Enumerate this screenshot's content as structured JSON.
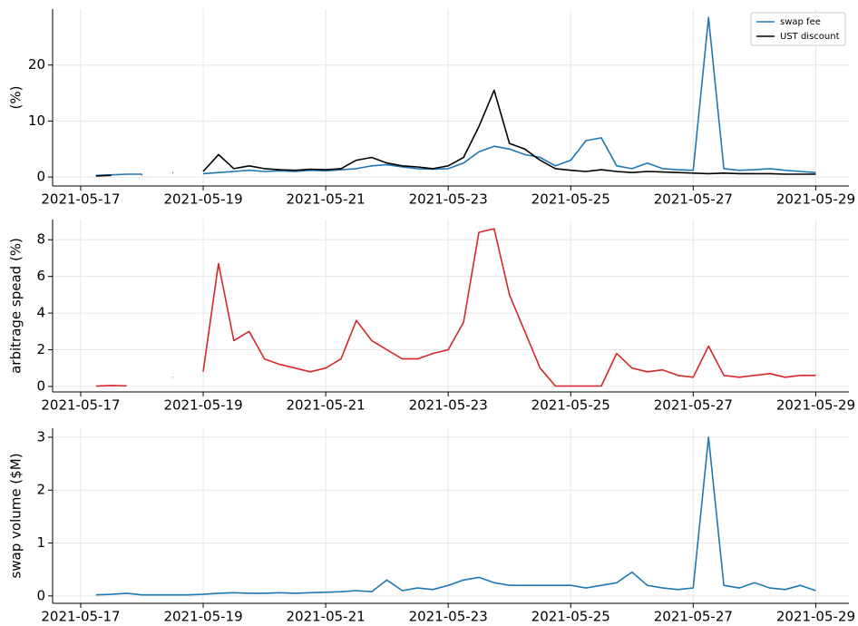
{
  "chart_data": [
    {
      "type": "line",
      "ylabel": "(%)",
      "grid": true,
      "legend": "upper right",
      "x": [
        "2021-05-17T00:00",
        "2021-05-17T06:00",
        "2021-05-17T12:00",
        "2021-05-17T18:00",
        "2021-05-18T00:00",
        "2021-05-18T06:00",
        "2021-05-18T12:00",
        "2021-05-18T18:00",
        "2021-05-19T00:00",
        "2021-05-19T06:00",
        "2021-05-19T12:00",
        "2021-05-19T18:00",
        "2021-05-20T00:00",
        "2021-05-20T06:00",
        "2021-05-20T12:00",
        "2021-05-20T18:00",
        "2021-05-21T00:00",
        "2021-05-21T06:00",
        "2021-05-21T12:00",
        "2021-05-21T18:00",
        "2021-05-22T00:00",
        "2021-05-22T06:00",
        "2021-05-22T12:00",
        "2021-05-22T18:00",
        "2021-05-23T00:00",
        "2021-05-23T06:00",
        "2021-05-23T12:00",
        "2021-05-23T18:00",
        "2021-05-24T00:00",
        "2021-05-24T06:00",
        "2021-05-24T12:00",
        "2021-05-24T18:00",
        "2021-05-25T00:00",
        "2021-05-25T06:00",
        "2021-05-25T12:00",
        "2021-05-25T18:00",
        "2021-05-26T00:00",
        "2021-05-26T06:00",
        "2021-05-26T12:00",
        "2021-05-26T18:00",
        "2021-05-27T00:00",
        "2021-05-27T06:00",
        "2021-05-27T12:00",
        "2021-05-27T18:00",
        "2021-05-28T00:00",
        "2021-05-28T06:00",
        "2021-05-28T12:00",
        "2021-05-28T18:00",
        "2021-05-29T00:00"
      ],
      "series": [
        {
          "name": "swap fee",
          "color": "#1f77b4",
          "values": [
            null,
            0.3,
            0.4,
            0.5,
            0.5,
            null,
            null,
            null,
            0.6,
            0.8,
            1.0,
            1.2,
            1.0,
            1.1,
            1.0,
            1.2,
            1.1,
            1.3,
            1.5,
            2.0,
            2.2,
            1.8,
            1.5,
            1.4,
            1.5,
            2.5,
            4.5,
            5.5,
            5.0,
            4.0,
            3.5,
            2.0,
            3.0,
            6.5,
            7.0,
            2.0,
            1.5,
            2.5,
            1.5,
            1.3,
            1.2,
            28.5,
            1.5,
            1.2,
            1.3,
            1.5,
            1.2,
            1.0,
            0.8
          ]
        },
        {
          "name": "UST discount",
          "color": "#000000",
          "values": [
            null,
            0.2,
            0.3,
            null,
            0.4,
            null,
            0.8,
            null,
            1.0,
            4.0,
            1.5,
            2.0,
            1.5,
            1.3,
            1.2,
            1.4,
            1.3,
            1.5,
            3.0,
            3.5,
            2.5,
            2.0,
            1.8,
            1.5,
            2.0,
            3.5,
            9.0,
            15.5,
            6.0,
            5.0,
            3.0,
            1.5,
            1.2,
            1.0,
            1.3,
            1.0,
            0.8,
            1.0,
            0.9,
            0.8,
            0.7,
            0.6,
            0.7,
            0.6,
            0.6,
            0.6,
            0.5,
            0.5,
            0.5
          ]
        }
      ],
      "xlim": [
        "2021-05-16T13:00",
        "2021-05-29T13:00"
      ],
      "xticks": [
        "2021-05-17",
        "2021-05-19",
        "2021-05-21",
        "2021-05-23",
        "2021-05-25",
        "2021-05-27",
        "2021-05-29"
      ],
      "ylim": [
        -1.6,
        30
      ],
      "yticks": [
        0,
        10,
        20
      ]
    },
    {
      "type": "line",
      "ylabel": "arbitrage spead (%)",
      "grid": true,
      "x": [
        "2021-05-17T00:00",
        "2021-05-17T06:00",
        "2021-05-17T12:00",
        "2021-05-17T18:00",
        "2021-05-18T00:00",
        "2021-05-18T06:00",
        "2021-05-18T12:00",
        "2021-05-18T18:00",
        "2021-05-19T00:00",
        "2021-05-19T06:00",
        "2021-05-19T12:00",
        "2021-05-19T18:00",
        "2021-05-20T00:00",
        "2021-05-20T06:00",
        "2021-05-20T12:00",
        "2021-05-20T18:00",
        "2021-05-21T00:00",
        "2021-05-21T06:00",
        "2021-05-21T12:00",
        "2021-05-21T18:00",
        "2021-05-22T00:00",
        "2021-05-22T06:00",
        "2021-05-22T12:00",
        "2021-05-22T18:00",
        "2021-05-23T00:00",
        "2021-05-23T06:00",
        "2021-05-23T12:00",
        "2021-05-23T18:00",
        "2021-05-24T00:00",
        "2021-05-24T06:00",
        "2021-05-24T12:00",
        "2021-05-24T18:00",
        "2021-05-25T00:00",
        "2021-05-25T06:00",
        "2021-05-25T12:00",
        "2021-05-25T18:00",
        "2021-05-26T00:00",
        "2021-05-26T06:00",
        "2021-05-26T12:00",
        "2021-05-26T18:00",
        "2021-05-27T00:00",
        "2021-05-27T06:00",
        "2021-05-27T12:00",
        "2021-05-27T18:00",
        "2021-05-28T00:00",
        "2021-05-28T06:00",
        "2021-05-28T12:00",
        "2021-05-28T18:00",
        "2021-05-29T00:00"
      ],
      "series": [
        {
          "name": "arbitrage spread",
          "color": "#d62728",
          "values": [
            null,
            0.02,
            0.05,
            0.03,
            null,
            null,
            0.5,
            null,
            0.8,
            6.7,
            2.5,
            3.0,
            1.5,
            1.2,
            1.0,
            0.8,
            1.0,
            1.5,
            3.6,
            2.5,
            2.0,
            1.5,
            1.5,
            1.8,
            2.0,
            3.5,
            8.4,
            8.6,
            5.0,
            3.0,
            1.0,
            0.02,
            0.02,
            0.02,
            0.02,
            1.8,
            1.0,
            0.8,
            0.9,
            0.6,
            0.5,
            2.2,
            0.6,
            0.5,
            0.6,
            0.7,
            0.5,
            0.6,
            0.6
          ]
        }
      ],
      "xlim": [
        "2021-05-16T13:00",
        "2021-05-29T13:00"
      ],
      "xticks": [
        "2021-05-17",
        "2021-05-19",
        "2021-05-21",
        "2021-05-23",
        "2021-05-25",
        "2021-05-27",
        "2021-05-29"
      ],
      "ylim": [
        -0.3,
        9.1
      ],
      "yticks": [
        0,
        2,
        4,
        6,
        8
      ]
    },
    {
      "type": "line",
      "ylabel": "swap volume ($M)",
      "grid": true,
      "x": [
        "2021-05-17T00:00",
        "2021-05-17T06:00",
        "2021-05-17T12:00",
        "2021-05-17T18:00",
        "2021-05-18T00:00",
        "2021-05-18T06:00",
        "2021-05-18T12:00",
        "2021-05-18T18:00",
        "2021-05-19T00:00",
        "2021-05-19T06:00",
        "2021-05-19T12:00",
        "2021-05-19T18:00",
        "2021-05-20T00:00",
        "2021-05-20T06:00",
        "2021-05-20T12:00",
        "2021-05-20T18:00",
        "2021-05-21T00:00",
        "2021-05-21T06:00",
        "2021-05-21T12:00",
        "2021-05-21T18:00",
        "2021-05-22T00:00",
        "2021-05-22T06:00",
        "2021-05-22T12:00",
        "2021-05-22T18:00",
        "2021-05-23T00:00",
        "2021-05-23T06:00",
        "2021-05-23T12:00",
        "2021-05-23T18:00",
        "2021-05-24T00:00",
        "2021-05-24T06:00",
        "2021-05-24T12:00",
        "2021-05-24T18:00",
        "2021-05-25T00:00",
        "2021-05-25T06:00",
        "2021-05-25T12:00",
        "2021-05-25T18:00",
        "2021-05-26T00:00",
        "2021-05-26T06:00",
        "2021-05-26T12:00",
        "2021-05-26T18:00",
        "2021-05-27T00:00",
        "2021-05-27T06:00",
        "2021-05-27T12:00",
        "2021-05-27T18:00",
        "2021-05-28T00:00",
        "2021-05-28T06:00",
        "2021-05-28T12:00",
        "2021-05-28T18:00",
        "2021-05-29T00:00"
      ],
      "series": [
        {
          "name": "swap volume",
          "color": "#1f77b4",
          "values": [
            null,
            0.02,
            0.03,
            0.05,
            0.02,
            0.02,
            0.02,
            0.02,
            0.03,
            0.05,
            0.06,
            0.05,
            0.05,
            0.06,
            0.05,
            0.06,
            0.07,
            0.08,
            0.1,
            0.08,
            0.3,
            0.1,
            0.15,
            0.12,
            0.2,
            0.3,
            0.35,
            0.25,
            0.2,
            0.2,
            0.2,
            0.2,
            0.2,
            0.15,
            0.2,
            0.25,
            0.45,
            0.2,
            0.15,
            0.12,
            0.15,
            3.0,
            0.2,
            0.15,
            0.25,
            0.15,
            0.12,
            0.2,
            0.1
          ]
        }
      ],
      "xlim": [
        "2021-05-16T13:00",
        "2021-05-29T13:00"
      ],
      "xticks": [
        "2021-05-17",
        "2021-05-19",
        "2021-05-21",
        "2021-05-23",
        "2021-05-25",
        "2021-05-27",
        "2021-05-29"
      ],
      "ylim": [
        -0.14,
        3.17
      ],
      "yticks": [
        0,
        1,
        2,
        3
      ]
    }
  ]
}
